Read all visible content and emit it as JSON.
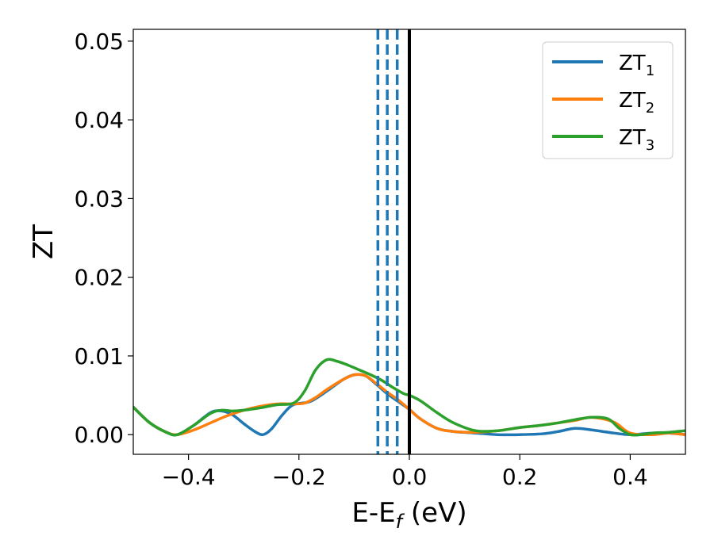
{
  "chart_data": {
    "type": "line",
    "title": "",
    "xlabel": "E-E",
    "xlabel_subscript": "f",
    "xlabel_suffix": " (eV)",
    "ylabel": "ZT",
    "xlim": [
      -0.5,
      0.5
    ],
    "ylim": [
      -0.0025,
      0.0515
    ],
    "xticks": [
      -0.4,
      -0.2,
      0.0,
      0.2,
      0.4
    ],
    "xtick_labels": [
      "−0.4",
      "−0.2",
      "0.0",
      "0.2",
      "0.4"
    ],
    "yticks": [
      0.0,
      0.01,
      0.02,
      0.03,
      0.04,
      0.05
    ],
    "ytick_labels": [
      "0.00",
      "0.01",
      "0.02",
      "0.03",
      "0.04",
      "0.05"
    ],
    "grid": false,
    "legend_position": "top-right",
    "vertical_lines": [
      {
        "x": 0.0,
        "color": "#000000",
        "style": "solid"
      },
      {
        "x": -0.057,
        "color": "#1f77b4",
        "style": "dashed"
      },
      {
        "x": -0.04,
        "color": "#1f77b4",
        "style": "dashed"
      },
      {
        "x": -0.022,
        "color": "#1f77b4",
        "style": "dashed"
      }
    ],
    "series": [
      {
        "name": "ZT",
        "subscript": "1",
        "color": "#1f77b4",
        "x": [
          -0.5,
          -0.47,
          -0.44,
          -0.42,
          -0.39,
          -0.36,
          -0.34,
          -0.32,
          -0.3,
          -0.28,
          -0.265,
          -0.25,
          -0.23,
          -0.21,
          -0.18,
          -0.15,
          -0.12,
          -0.1,
          -0.08,
          -0.06,
          -0.04,
          -0.02,
          0.0,
          0.02,
          0.05,
          0.08,
          0.12,
          0.16,
          0.2,
          0.24,
          0.27,
          0.3,
          0.33,
          0.37,
          0.4,
          0.44,
          0.47,
          0.5
        ],
        "y": [
          0.0035,
          0.0015,
          0.0003,
          0.0,
          0.0012,
          0.0028,
          0.003,
          0.0025,
          0.0014,
          0.0004,
          0.0,
          0.0007,
          0.0025,
          0.0038,
          0.0042,
          0.0055,
          0.007,
          0.0076,
          0.0075,
          0.0064,
          0.0052,
          0.0042,
          0.0032,
          0.002,
          0.0008,
          0.0004,
          0.0002,
          0.0,
          0.0,
          0.0001,
          0.0004,
          0.0008,
          0.0006,
          0.0002,
          0.0,
          0.0002,
          0.0002,
          0.0
        ]
      },
      {
        "name": "ZT",
        "subscript": "2",
        "color": "#ff7f0e",
        "x": [
          -0.5,
          -0.47,
          -0.44,
          -0.42,
          -0.39,
          -0.36,
          -0.33,
          -0.3,
          -0.27,
          -0.24,
          -0.21,
          -0.19,
          -0.17,
          -0.15,
          -0.12,
          -0.1,
          -0.08,
          -0.06,
          -0.04,
          -0.02,
          0.0,
          0.02,
          0.05,
          0.08,
          0.12,
          0.16,
          0.2,
          0.24,
          0.27,
          0.3,
          0.33,
          0.37,
          0.4,
          0.44,
          0.47,
          0.5
        ],
        "y": [
          0.0035,
          0.0015,
          0.0003,
          0.0,
          0.0006,
          0.0015,
          0.0024,
          0.0031,
          0.0036,
          0.0039,
          0.0039,
          0.004,
          0.0047,
          0.0057,
          0.007,
          0.0076,
          0.0075,
          0.0065,
          0.0054,
          0.0044,
          0.0032,
          0.002,
          0.0008,
          0.0004,
          0.0003,
          0.0005,
          0.0009,
          0.0012,
          0.0015,
          0.0018,
          0.0022,
          0.0016,
          0.0002,
          0.0,
          0.0002,
          0.0
        ]
      },
      {
        "name": "ZT",
        "subscript": "3",
        "color": "#2ca02c",
        "x": [
          -0.5,
          -0.47,
          -0.44,
          -0.42,
          -0.39,
          -0.36,
          -0.34,
          -0.32,
          -0.3,
          -0.27,
          -0.24,
          -0.21,
          -0.19,
          -0.17,
          -0.15,
          -0.13,
          -0.11,
          -0.09,
          -0.07,
          -0.05,
          -0.03,
          -0.01,
          0.0,
          0.02,
          0.05,
          0.08,
          0.12,
          0.16,
          0.2,
          0.24,
          0.27,
          0.3,
          0.33,
          0.36,
          0.38,
          0.4,
          0.42,
          0.44,
          0.47,
          0.5
        ],
        "y": [
          0.0035,
          0.0015,
          0.0003,
          0.0,
          0.0012,
          0.0027,
          0.0031,
          0.003,
          0.0031,
          0.0034,
          0.0038,
          0.004,
          0.0055,
          0.0082,
          0.0095,
          0.0093,
          0.0088,
          0.0082,
          0.0076,
          0.0069,
          0.006,
          0.0052,
          0.005,
          0.0043,
          0.0028,
          0.0015,
          0.0005,
          0.0005,
          0.0009,
          0.0012,
          0.0015,
          0.0019,
          0.0022,
          0.002,
          0.0008,
          0.0,
          0.0,
          0.0002,
          0.0003,
          0.0005
        ]
      }
    ]
  }
}
